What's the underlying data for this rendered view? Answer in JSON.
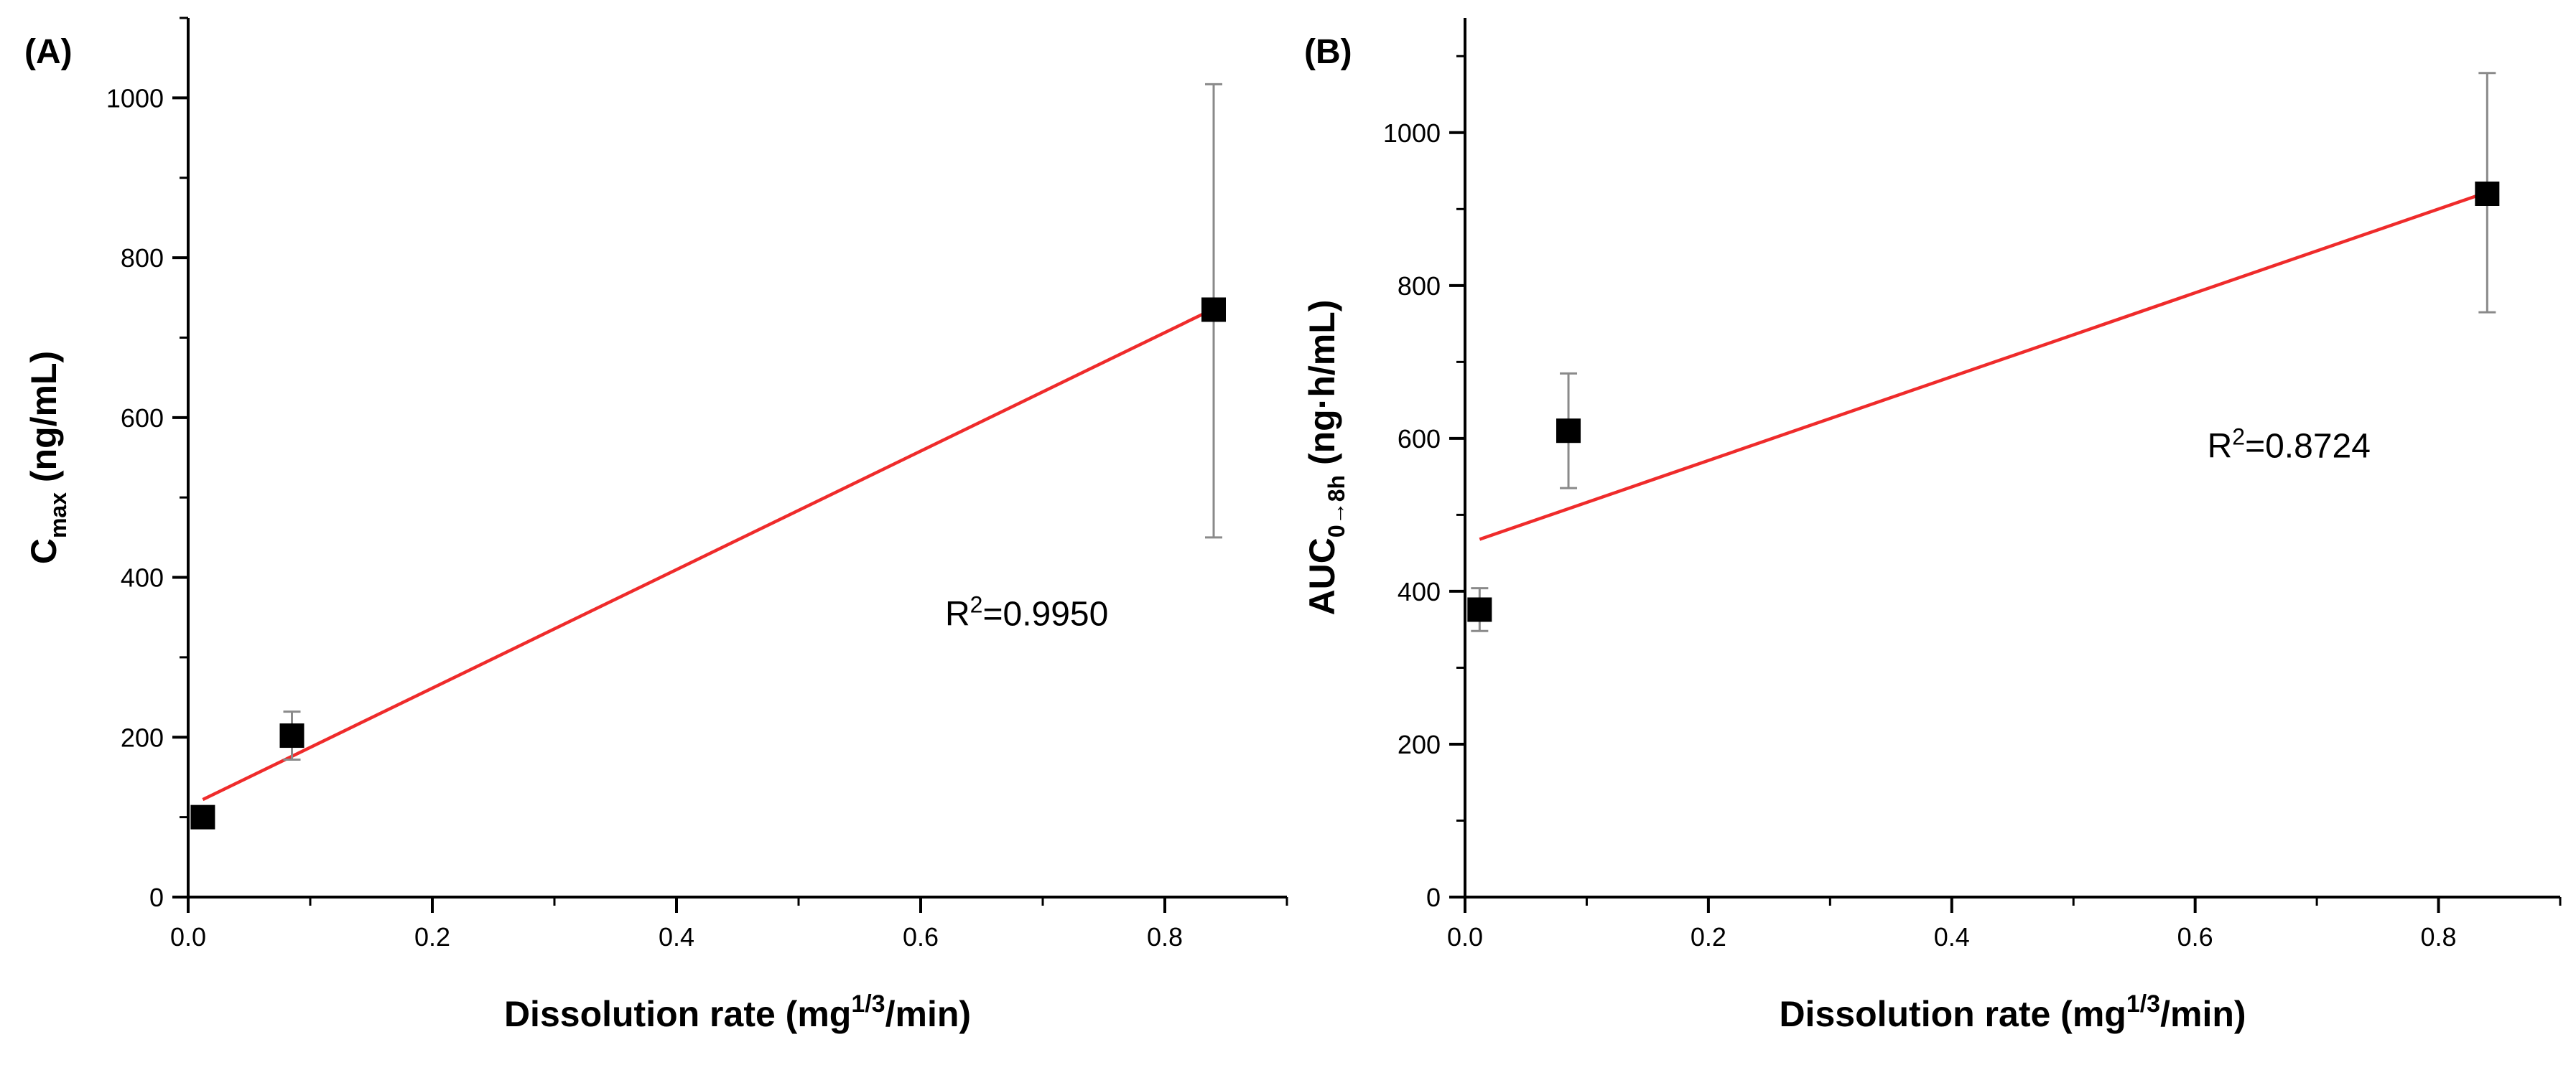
{
  "chart_data": [
    {
      "type": "scatter",
      "panel_label": "(A)",
      "xlabel_main": "Dissolution rate (mg",
      "xlabel_sup": "1/3",
      "xlabel_tail": "/min)",
      "ylabel_main": "C",
      "ylabel_sub": "max",
      "ylabel_tail": " (ng/mL)",
      "xlim": [
        0,
        0.9
      ],
      "ylim": [
        0,
        1100
      ],
      "xticks": [
        0.0,
        0.2,
        0.4,
        0.6,
        0.8
      ],
      "xtick_labels": [
        "0.0",
        "0.2",
        "0.4",
        "0.6",
        "0.8"
      ],
      "yticks": [
        0,
        200,
        400,
        600,
        800,
        1000
      ],
      "ytick_labels": [
        "0",
        "200",
        "400",
        "600",
        "800",
        "1000"
      ],
      "series": [
        {
          "name": "Cmax",
          "x": [
            0.012,
            0.085,
            0.84
          ],
          "y": [
            100,
            202,
            735
          ],
          "err_low": [
            8,
            30,
            285
          ],
          "err_high": [
            8,
            30,
            282
          ]
        }
      ],
      "fit": {
        "x": [
          0.012,
          0.84
        ],
        "y": [
          122,
          736
        ]
      },
      "r2_label_main": "R",
      "r2_label_sup": "2",
      "r2_label_tail": "=0.9950",
      "r2_anchor": {
        "x": 0.62,
        "y": 340
      }
    },
    {
      "type": "scatter",
      "panel_label": "(B)",
      "xlabel_main": "Dissolution rate (mg",
      "xlabel_sup": "1/3",
      "xlabel_tail": "/min)",
      "ylabel_main": "AUC",
      "ylabel_sub": "0→8h",
      "ylabel_tail": " (ng·h/mL)",
      "xlim": [
        0,
        0.9
      ],
      "ylim": [
        0,
        1150
      ],
      "xticks": [
        0.0,
        0.2,
        0.4,
        0.6,
        0.8
      ],
      "xtick_labels": [
        "0.0",
        "0.2",
        "0.4",
        "0.6",
        "0.8"
      ],
      "yticks": [
        0,
        200,
        400,
        600,
        800,
        1000
      ],
      "ytick_labels": [
        "0",
        "200",
        "400",
        "600",
        "800",
        "1000"
      ],
      "series": [
        {
          "name": "AUC0-8h",
          "x": [
            0.012,
            0.085,
            0.84
          ],
          "y": [
            376,
            610,
            920
          ],
          "err_low": [
            28,
            75,
            155
          ],
          "err_high": [
            28,
            75,
            158
          ]
        }
      ],
      "fit": {
        "x": [
          0.012,
          0.84
        ],
        "y": [
          468,
          922
        ]
      },
      "r2_label_main": "R",
      "r2_label_sup": "2",
      "r2_label_tail": "=0.8724",
      "r2_anchor": {
        "x": 0.61,
        "y": 575
      }
    }
  ],
  "colors": {
    "fit_line": "#ef2b2b",
    "error_bar": "#8a8a8a",
    "marker": "#000000"
  }
}
